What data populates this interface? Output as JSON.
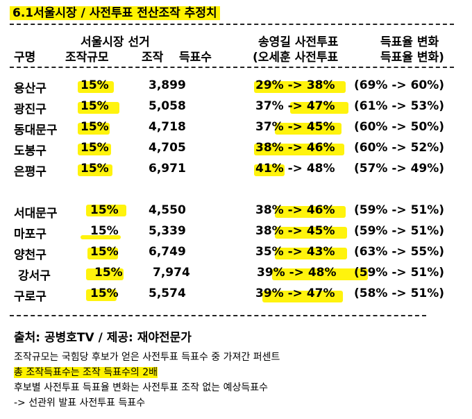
{
  "title": "6.1서울시장  /  사전투표  전산조작  추정치",
  "header": {
    "district_label": "구명",
    "scale_label_top": "서울시장 선거",
    "scale_label": "조작규모",
    "votes_label_top": "조작",
    "votes_label": "득표수",
    "turnout_label_top": "송영길 사전투표",
    "turnout_label": "(오세훈 사전투표",
    "rate_label_top": "득표율  변화",
    "rate_label": "득표율  변화)"
  },
  "group1": [
    {
      "district": "용산구",
      "scale": "15%",
      "votes": "3,899",
      "turnout": "29% -> 38%",
      "rate": "(69% -> 60%)"
    },
    {
      "district": "광진구",
      "scale": "15%",
      "votes": "5,058",
      "turnout": "37% -> 47%",
      "rate": "(61% -> 53%)"
    },
    {
      "district": "동대문구",
      "scale": "15%",
      "votes": "4,718",
      "turnout": "37% -> 45%",
      "rate": "(60% -> 50%)"
    },
    {
      "district": "도봉구",
      "scale": "15%",
      "votes": "4,705",
      "turnout": "38% -> 46%",
      "rate": "(60% -> 52%)"
    },
    {
      "district": "은평구",
      "scale": "15%",
      "votes": "6,971",
      "turnout": "41% -> 48%",
      "rate": "(57% -> 49%)"
    }
  ],
  "group2": [
    {
      "district": "서대문구",
      "scale": "15%",
      "votes": "4,550",
      "turnout": "38% -> 46%",
      "rate": "(59% -> 51%)"
    },
    {
      "district": "마포구",
      "scale": "15%",
      "votes": "5,339",
      "turnout": "38% -> 45%",
      "rate": "(59% -> 51%)"
    },
    {
      "district": "양천구",
      "scale": "15%",
      "votes": "6,749",
      "turnout": "35% -> 43%",
      "rate": "(63% -> 55%)"
    },
    {
      "district": "강서구",
      "scale": "15%",
      "votes": "7,974",
      "turnout": "39% -> 48%",
      "rate": "(59% -> 51%)"
    },
    {
      "district": "구로구",
      "scale": "15%",
      "votes": "5,574",
      "turnout": "39% -> 47%",
      "rate": "(58% -> 51%)"
    }
  ],
  "source": "출처: 공병호TV / 제공: 재야전문가",
  "notes": [
    "조작규모는 국힘당 후보가 얻은 사전투표 득표수 중 가져간 퍼센트",
    "총 조작득표수는 조작 득표수의 2배",
    "후보별 사전투표 득표율 변화는 사전투표 조작 없는 예상득표수",
    " -> 선관위 발표 사전투표 득표수"
  ],
  "highlight_color": "#fff200"
}
